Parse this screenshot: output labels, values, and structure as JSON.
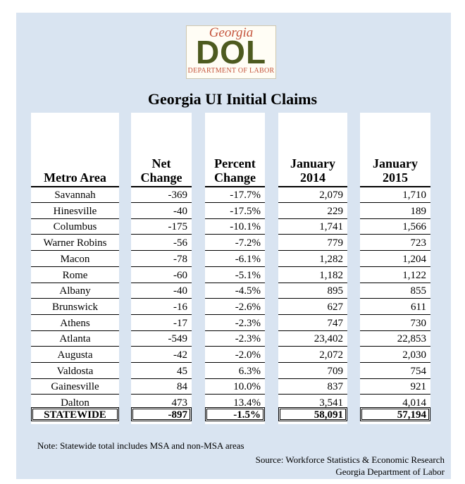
{
  "logo": {
    "top_text": "Georgia",
    "main_text": "DOL",
    "bottom_text": "DEPARTMENT OF LABOR"
  },
  "title": "Georgia UI Initial Claims",
  "headers": {
    "metro": "Metro Area",
    "net_1": "Net",
    "net_2": "Change",
    "pct_1": "Percent",
    "pct_2": "Change",
    "jan14_1": "January",
    "jan14_2": "2014",
    "jan15_1": "January",
    "jan15_2": "2015"
  },
  "rows": [
    {
      "area": "Savannah",
      "net": "-369",
      "pct": "-17.7%",
      "jan14": "2,079",
      "jan15": "1,710"
    },
    {
      "area": "Hinesville",
      "net": "-40",
      "pct": "-17.5%",
      "jan14": "229",
      "jan15": "189"
    },
    {
      "area": "Columbus",
      "net": "-175",
      "pct": "-10.1%",
      "jan14": "1,741",
      "jan15": "1,566"
    },
    {
      "area": "Warner Robins",
      "net": "-56",
      "pct": "-7.2%",
      "jan14": "779",
      "jan15": "723"
    },
    {
      "area": "Macon",
      "net": "-78",
      "pct": "-6.1%",
      "jan14": "1,282",
      "jan15": "1,204"
    },
    {
      "area": "Rome",
      "net": "-60",
      "pct": "-5.1%",
      "jan14": "1,182",
      "jan15": "1,122"
    },
    {
      "area": "Albany",
      "net": "-40",
      "pct": "-4.5%",
      "jan14": "895",
      "jan15": "855"
    },
    {
      "area": "Brunswick",
      "net": "-16",
      "pct": "-2.6%",
      "jan14": "627",
      "jan15": "611"
    },
    {
      "area": "Athens",
      "net": "-17",
      "pct": "-2.3%",
      "jan14": "747",
      "jan15": "730"
    },
    {
      "area": "Atlanta",
      "net": "-549",
      "pct": "-2.3%",
      "jan14": "23,402",
      "jan15": "22,853"
    },
    {
      "area": "Augusta",
      "net": "-42",
      "pct": "-2.0%",
      "jan14": "2,072",
      "jan15": "2,030"
    },
    {
      "area": "Valdosta",
      "net": "45",
      "pct": "6.3%",
      "jan14": "709",
      "jan15": "754"
    },
    {
      "area": "Gainesville",
      "net": "84",
      "pct": "10.0%",
      "jan14": "837",
      "jan15": "921"
    },
    {
      "area": "Dalton",
      "net": "473",
      "pct": "13.4%",
      "jan14": "3,541",
      "jan15": "4,014"
    }
  ],
  "statewide": {
    "area": "STATEWIDE",
    "net": "-897",
    "pct": "-1.5%",
    "jan14": "58,091",
    "jan15": "57,194"
  },
  "note": "Note: Statewide total includes MSA and non-MSA areas",
  "source_1": "Source: Workforce Statistics & Economic Research",
  "source_2": "Georgia Department of Labor"
}
